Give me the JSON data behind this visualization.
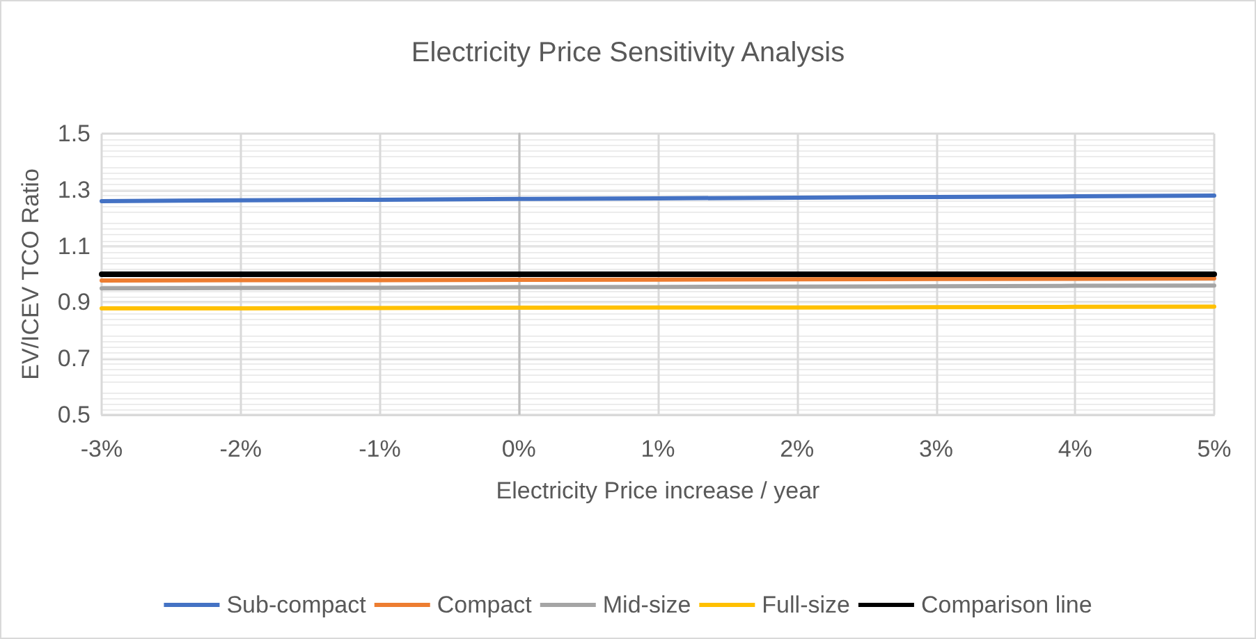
{
  "chart_data": {
    "type": "line",
    "title": "Electricity Price Sensitivity Analysis",
    "xlabel": "Electricity Price increase / year",
    "ylabel": "EV/ICEV TCO Ratio",
    "x": [
      -3,
      -2,
      -1,
      0,
      1,
      2,
      3,
      4,
      5
    ],
    "series": [
      {
        "name": "Sub-compact",
        "color": "#4472c4",
        "values": [
          1.26,
          1.263,
          1.265,
          1.268,
          1.27,
          1.272,
          1.275,
          1.277,
          1.28
        ]
      },
      {
        "name": "Compact",
        "color": "#ed7d31",
        "values": [
          0.978,
          0.979,
          0.979,
          0.98,
          0.981,
          0.982,
          0.983,
          0.984,
          0.985
        ]
      },
      {
        "name": "Mid-size",
        "color": "#a5a5a5",
        "values": [
          0.95,
          0.951,
          0.952,
          0.954,
          0.955,
          0.956,
          0.957,
          0.959,
          0.96
        ]
      },
      {
        "name": "Full-size",
        "color": "#ffc000",
        "values": [
          0.879,
          0.879,
          0.88,
          0.881,
          0.882,
          0.882,
          0.883,
          0.884,
          0.885
        ]
      },
      {
        "name": "Comparison line",
        "color": "#000000",
        "values": [
          1,
          1,
          1,
          1,
          1,
          1,
          1,
          1,
          1
        ]
      }
    ],
    "xlim": [
      -3,
      5
    ],
    "xticks": [
      {
        "value": -3,
        "label": "-3%"
      },
      {
        "value": -2,
        "label": "-2%"
      },
      {
        "value": -1,
        "label": "-1%"
      },
      {
        "value": 0,
        "label": "0%"
      },
      {
        "value": 1,
        "label": "1%"
      },
      {
        "value": 2,
        "label": "2%"
      },
      {
        "value": 3,
        "label": "3%"
      },
      {
        "value": 4,
        "label": "4%"
      },
      {
        "value": 5,
        "label": "5%"
      }
    ],
    "ylim": [
      0.5,
      1.5
    ],
    "yticks": [
      0.5,
      0.7,
      0.9,
      1.1,
      1.3,
      1.5
    ],
    "grid": true,
    "legend": "bottom",
    "marker": "none",
    "line_style": "solid"
  }
}
